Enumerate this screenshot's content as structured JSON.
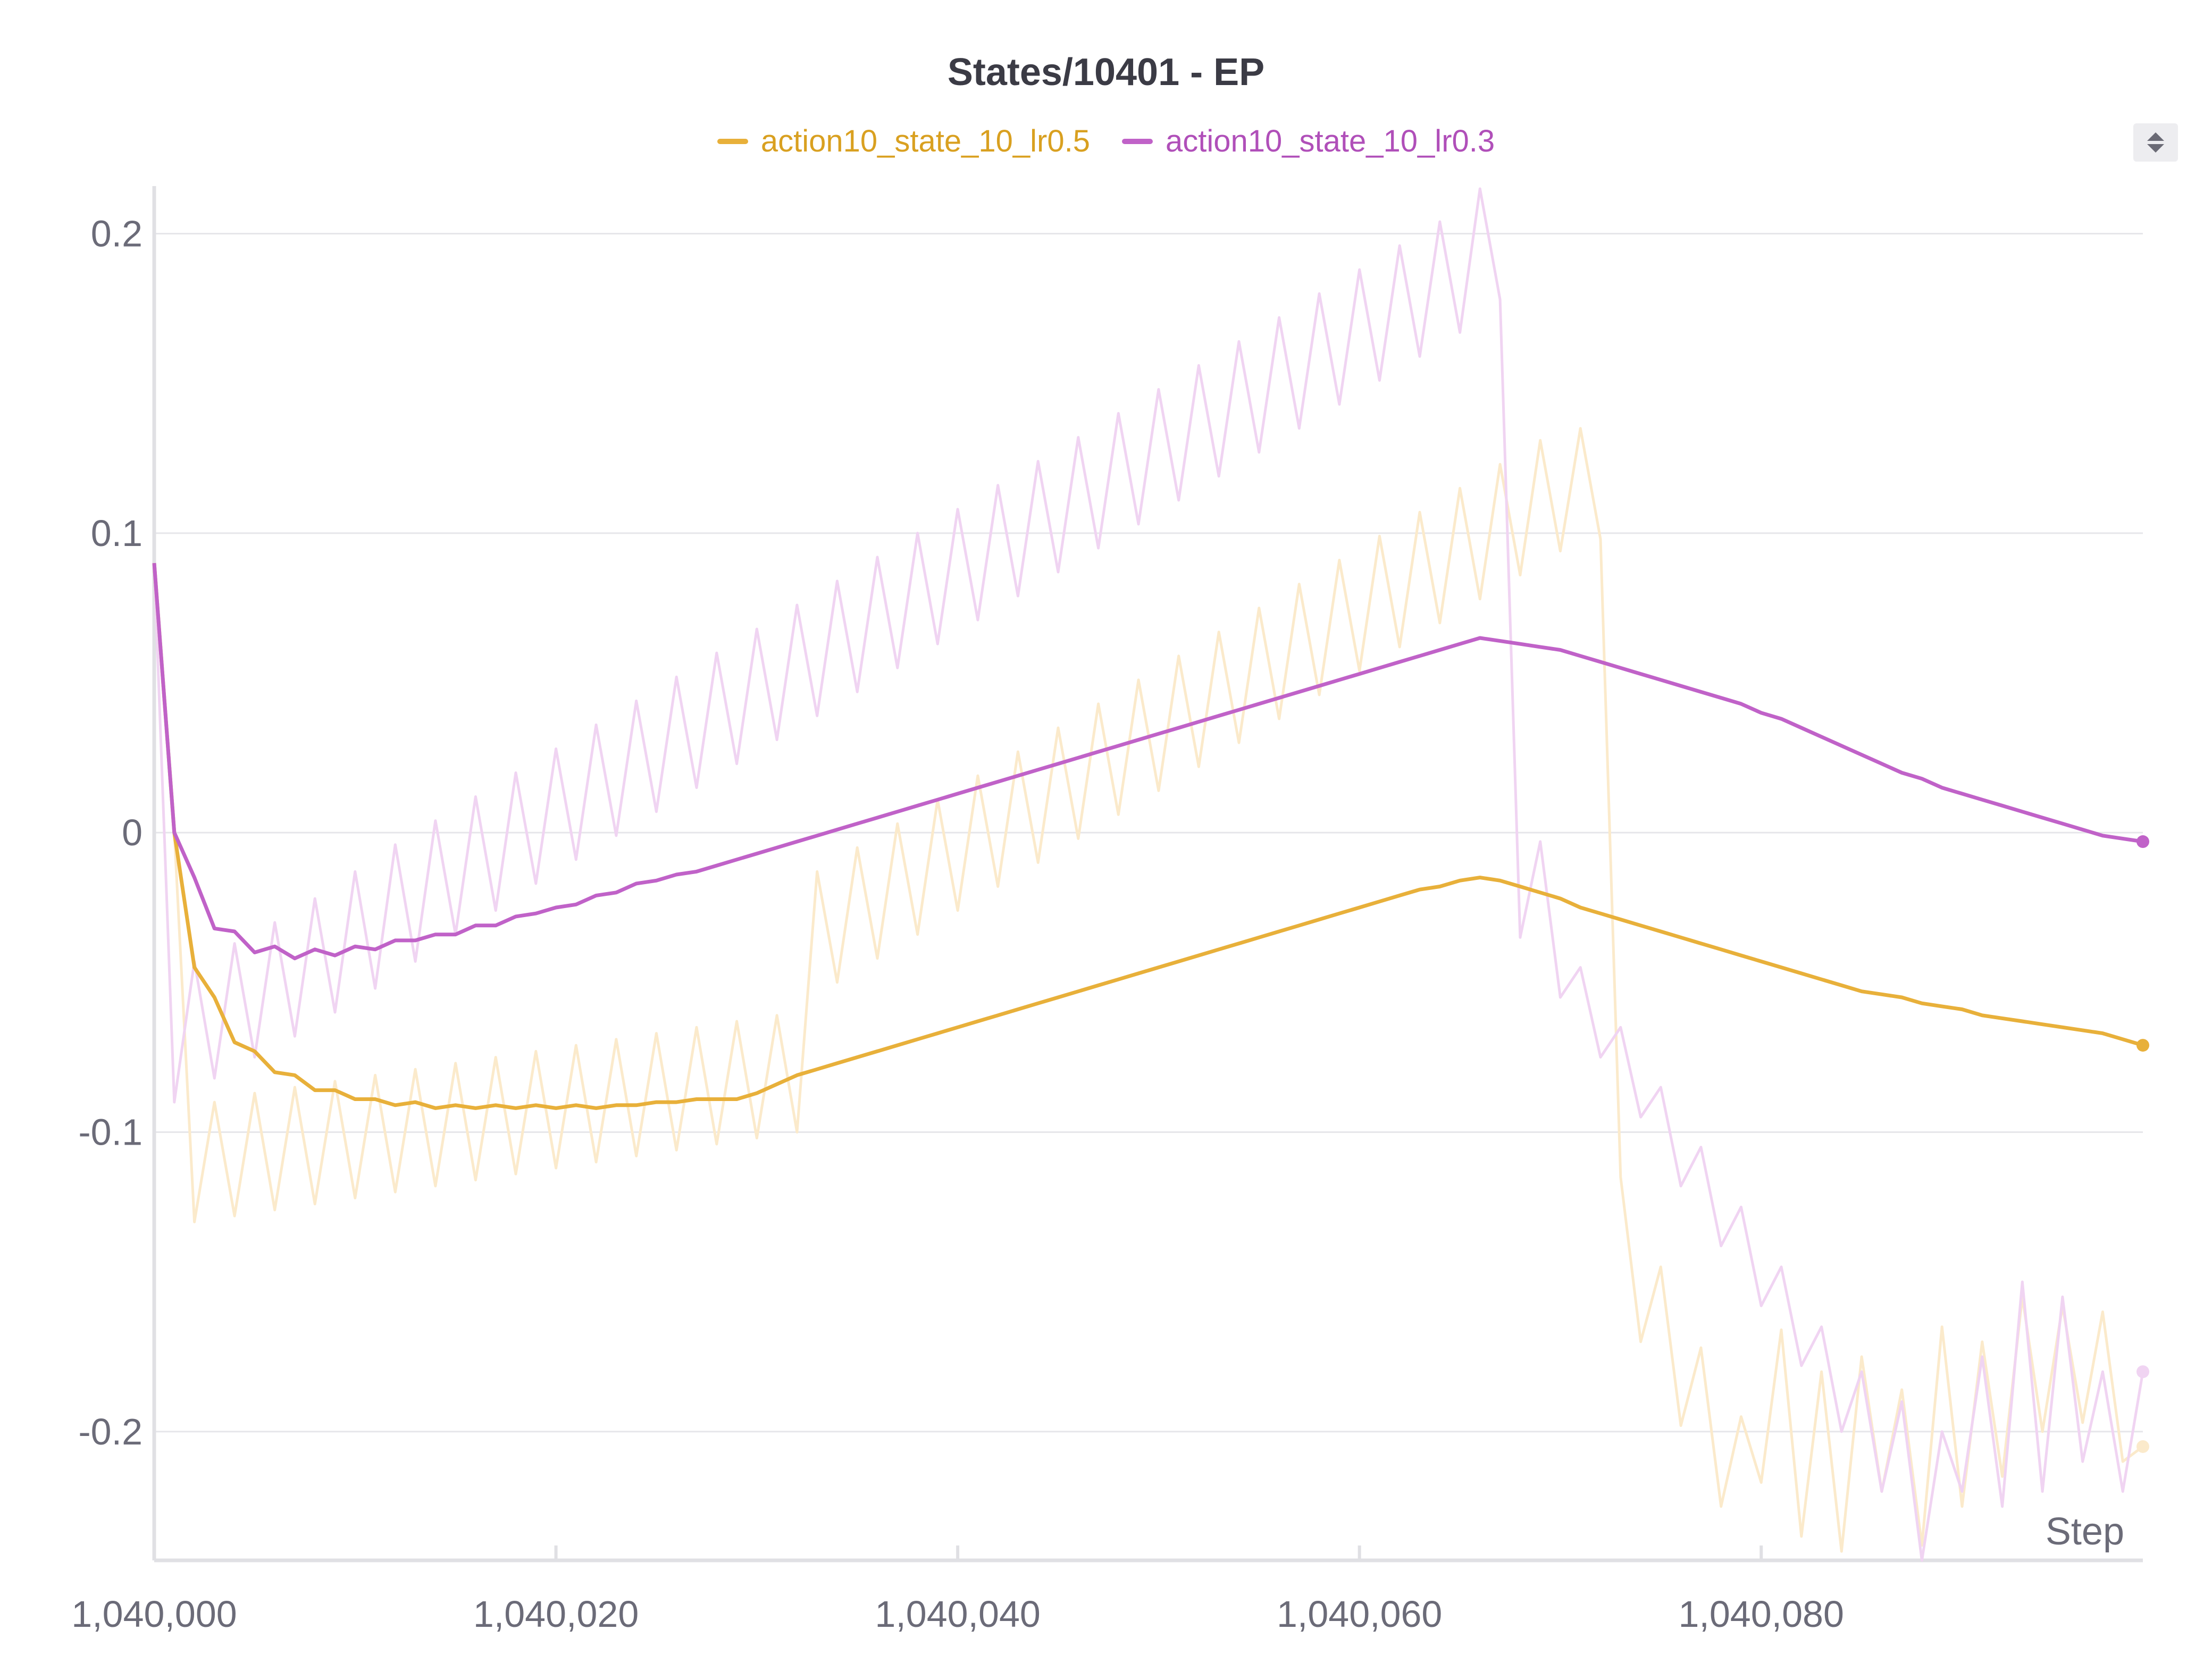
{
  "chart_data": {
    "type": "line",
    "title": "States/10401 - EP",
    "xlabel": "Step",
    "ylabel": "",
    "xlim": [
      1040000,
      1040099
    ],
    "ylim": [
      -0.243,
      0.215
    ],
    "x_ticks": [
      1040000,
      1040020,
      1040040,
      1040060,
      1040080
    ],
    "x_tick_labels": [
      "1,040,000",
      "1,040,020",
      "1,040,040",
      "1,040,060",
      "1,040,080"
    ],
    "y_ticks": [
      0.2,
      0.1,
      0,
      -0.1,
      -0.2
    ],
    "y_tick_labels": [
      "0.2",
      "0.1",
      "0",
      "-0.1",
      "-0.2"
    ],
    "grid": true,
    "legend_position": "top-center",
    "x_start": 1040000,
    "x_step": 1,
    "series": [
      {
        "name": "action10_state_10_lr0.5",
        "color": "#e8b03a",
        "smoothed": [
          0.09,
          0.0,
          -0.045,
          -0.055,
          -0.07,
          -0.073,
          -0.08,
          -0.081,
          -0.086,
          -0.086,
          -0.089,
          -0.089,
          -0.091,
          -0.09,
          -0.092,
          -0.091,
          -0.092,
          -0.091,
          -0.092,
          -0.091,
          -0.092,
          -0.091,
          -0.092,
          -0.091,
          -0.091,
          -0.09,
          -0.09,
          -0.089,
          -0.089,
          -0.089,
          -0.087,
          -0.084,
          -0.081,
          -0.079,
          -0.077,
          -0.075,
          -0.073,
          -0.071,
          -0.069,
          -0.067,
          -0.065,
          -0.063,
          -0.061,
          -0.059,
          -0.057,
          -0.055,
          -0.053,
          -0.051,
          -0.049,
          -0.047,
          -0.045,
          -0.043,
          -0.041,
          -0.039,
          -0.037,
          -0.035,
          -0.033,
          -0.031,
          -0.029,
          -0.027,
          -0.025,
          -0.023,
          -0.021,
          -0.019,
          -0.018,
          -0.016,
          -0.015,
          -0.016,
          -0.018,
          -0.02,
          -0.022,
          -0.025,
          -0.027,
          -0.029,
          -0.031,
          -0.033,
          -0.035,
          -0.037,
          -0.039,
          -0.041,
          -0.043,
          -0.045,
          -0.047,
          -0.049,
          -0.051,
          -0.053,
          -0.054,
          -0.055,
          -0.057,
          -0.058,
          -0.059,
          -0.061,
          -0.062,
          -0.063,
          -0.064,
          -0.065,
          -0.066,
          -0.067,
          -0.069,
          -0.071
        ],
        "raw": [
          0.09,
          0.0,
          -0.13,
          -0.09,
          -0.128,
          -0.087,
          -0.126,
          -0.085,
          -0.124,
          -0.083,
          -0.122,
          -0.081,
          -0.12,
          -0.079,
          -0.118,
          -0.077,
          -0.116,
          -0.075,
          -0.114,
          -0.073,
          -0.112,
          -0.071,
          -0.11,
          -0.069,
          -0.108,
          -0.067,
          -0.106,
          -0.065,
          -0.104,
          -0.063,
          -0.102,
          -0.061,
          -0.1,
          -0.013,
          -0.05,
          -0.005,
          -0.042,
          0.003,
          -0.034,
          0.011,
          -0.026,
          0.019,
          -0.018,
          0.027,
          -0.01,
          0.035,
          -0.002,
          0.043,
          0.006,
          0.051,
          0.014,
          0.059,
          0.022,
          0.067,
          0.03,
          0.075,
          0.038,
          0.083,
          0.046,
          0.091,
          0.054,
          0.099,
          0.062,
          0.107,
          0.07,
          0.115,
          0.078,
          0.123,
          0.086,
          0.131,
          0.094,
          0.135,
          0.098,
          -0.115,
          -0.17,
          -0.145,
          -0.198,
          -0.172,
          -0.225,
          -0.195,
          -0.217,
          -0.166,
          -0.235,
          -0.18,
          -0.24,
          -0.175,
          -0.22,
          -0.186,
          -0.238,
          -0.165,
          -0.225,
          -0.17,
          -0.215,
          -0.155,
          -0.2,
          -0.158,
          -0.197,
          -0.16,
          -0.21,
          -0.205
        ]
      },
      {
        "name": "action10_state_10_lr0.3",
        "color": "#c062c8",
        "smoothed": [
          0.09,
          0.0,
          -0.015,
          -0.032,
          -0.033,
          -0.04,
          -0.038,
          -0.042,
          -0.039,
          -0.041,
          -0.038,
          -0.039,
          -0.036,
          -0.036,
          -0.034,
          -0.034,
          -0.031,
          -0.031,
          -0.028,
          -0.027,
          -0.025,
          -0.024,
          -0.021,
          -0.02,
          -0.017,
          -0.016,
          -0.014,
          -0.013,
          -0.011,
          -0.009,
          -0.007,
          -0.005,
          -0.003,
          -0.001,
          0.001,
          0.003,
          0.005,
          0.007,
          0.009,
          0.011,
          0.013,
          0.015,
          0.017,
          0.019,
          0.021,
          0.023,
          0.025,
          0.027,
          0.029,
          0.031,
          0.033,
          0.035,
          0.037,
          0.039,
          0.041,
          0.043,
          0.045,
          0.047,
          0.049,
          0.051,
          0.053,
          0.055,
          0.057,
          0.059,
          0.061,
          0.063,
          0.065,
          0.064,
          0.063,
          0.062,
          0.061,
          0.059,
          0.057,
          0.055,
          0.053,
          0.051,
          0.049,
          0.047,
          0.045,
          0.043,
          0.04,
          0.038,
          0.035,
          0.032,
          0.029,
          0.026,
          0.023,
          0.02,
          0.018,
          0.015,
          0.013,
          0.011,
          0.009,
          0.007,
          0.005,
          0.003,
          0.001,
          -0.001,
          -0.002,
          -0.003
        ],
        "raw": [
          0.09,
          -0.09,
          -0.043,
          -0.082,
          -0.037,
          -0.075,
          -0.03,
          -0.068,
          -0.022,
          -0.06,
          -0.013,
          -0.052,
          -0.004,
          -0.043,
          0.004,
          -0.034,
          0.012,
          -0.026,
          0.02,
          -0.017,
          0.028,
          -0.009,
          0.036,
          -0.001,
          0.044,
          0.007,
          0.052,
          0.015,
          0.06,
          0.023,
          0.068,
          0.031,
          0.076,
          0.039,
          0.084,
          0.047,
          0.092,
          0.055,
          0.1,
          0.063,
          0.108,
          0.071,
          0.116,
          0.079,
          0.124,
          0.087,
          0.132,
          0.095,
          0.14,
          0.103,
          0.148,
          0.111,
          0.156,
          0.119,
          0.164,
          0.127,
          0.172,
          0.135,
          0.18,
          0.143,
          0.188,
          0.151,
          0.196,
          0.159,
          0.204,
          0.167,
          0.215,
          0.178,
          -0.035,
          -0.003,
          -0.055,
          -0.045,
          -0.075,
          -0.065,
          -0.095,
          -0.085,
          -0.118,
          -0.105,
          -0.138,
          -0.125,
          -0.158,
          -0.145,
          -0.178,
          -0.165,
          -0.2,
          -0.18,
          -0.22,
          -0.19,
          -0.243,
          -0.2,
          -0.22,
          -0.175,
          -0.225,
          -0.15,
          -0.22,
          -0.155,
          -0.21,
          -0.18,
          -0.22,
          -0.18
        ]
      }
    ]
  }
}
